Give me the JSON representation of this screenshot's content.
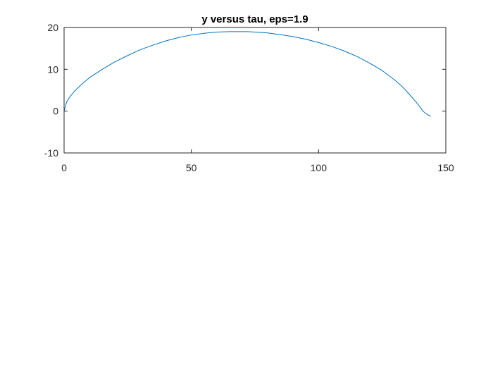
{
  "chart_data": {
    "type": "line",
    "title": "y versus tau, eps=1.9",
    "xlabel": "",
    "ylabel": "",
    "xlim": [
      0,
      150
    ],
    "ylim": [
      -10,
      20
    ],
    "xticks": [
      0,
      50,
      100,
      150
    ],
    "yticks": [
      -10,
      0,
      10,
      20
    ],
    "grid": false,
    "line_color": "#0072BD",
    "series": [
      {
        "x": [
          0,
          1,
          2,
          4,
          6,
          8,
          10,
          15,
          20,
          25,
          30,
          35,
          40,
          45,
          50,
          55,
          60,
          65,
          70,
          72,
          75,
          80,
          85,
          90,
          95,
          100,
          105,
          110,
          115,
          120,
          125,
          130,
          133,
          136,
          138,
          140,
          141,
          142,
          143,
          144
        ],
        "y": [
          0,
          2.2,
          3.2,
          4.7,
          5.9,
          7.0,
          8.0,
          10.0,
          11.8,
          13.3,
          14.7,
          15.8,
          16.8,
          17.6,
          18.2,
          18.6,
          18.9,
          19.0,
          19.0,
          19.0,
          18.9,
          18.7,
          18.3,
          17.8,
          17.2,
          16.4,
          15.5,
          14.4,
          13.1,
          11.5,
          9.7,
          7.4,
          5.8,
          3.8,
          2.4,
          0.9,
          0.0,
          -0.5,
          -0.9,
          -1.2
        ]
      }
    ]
  }
}
